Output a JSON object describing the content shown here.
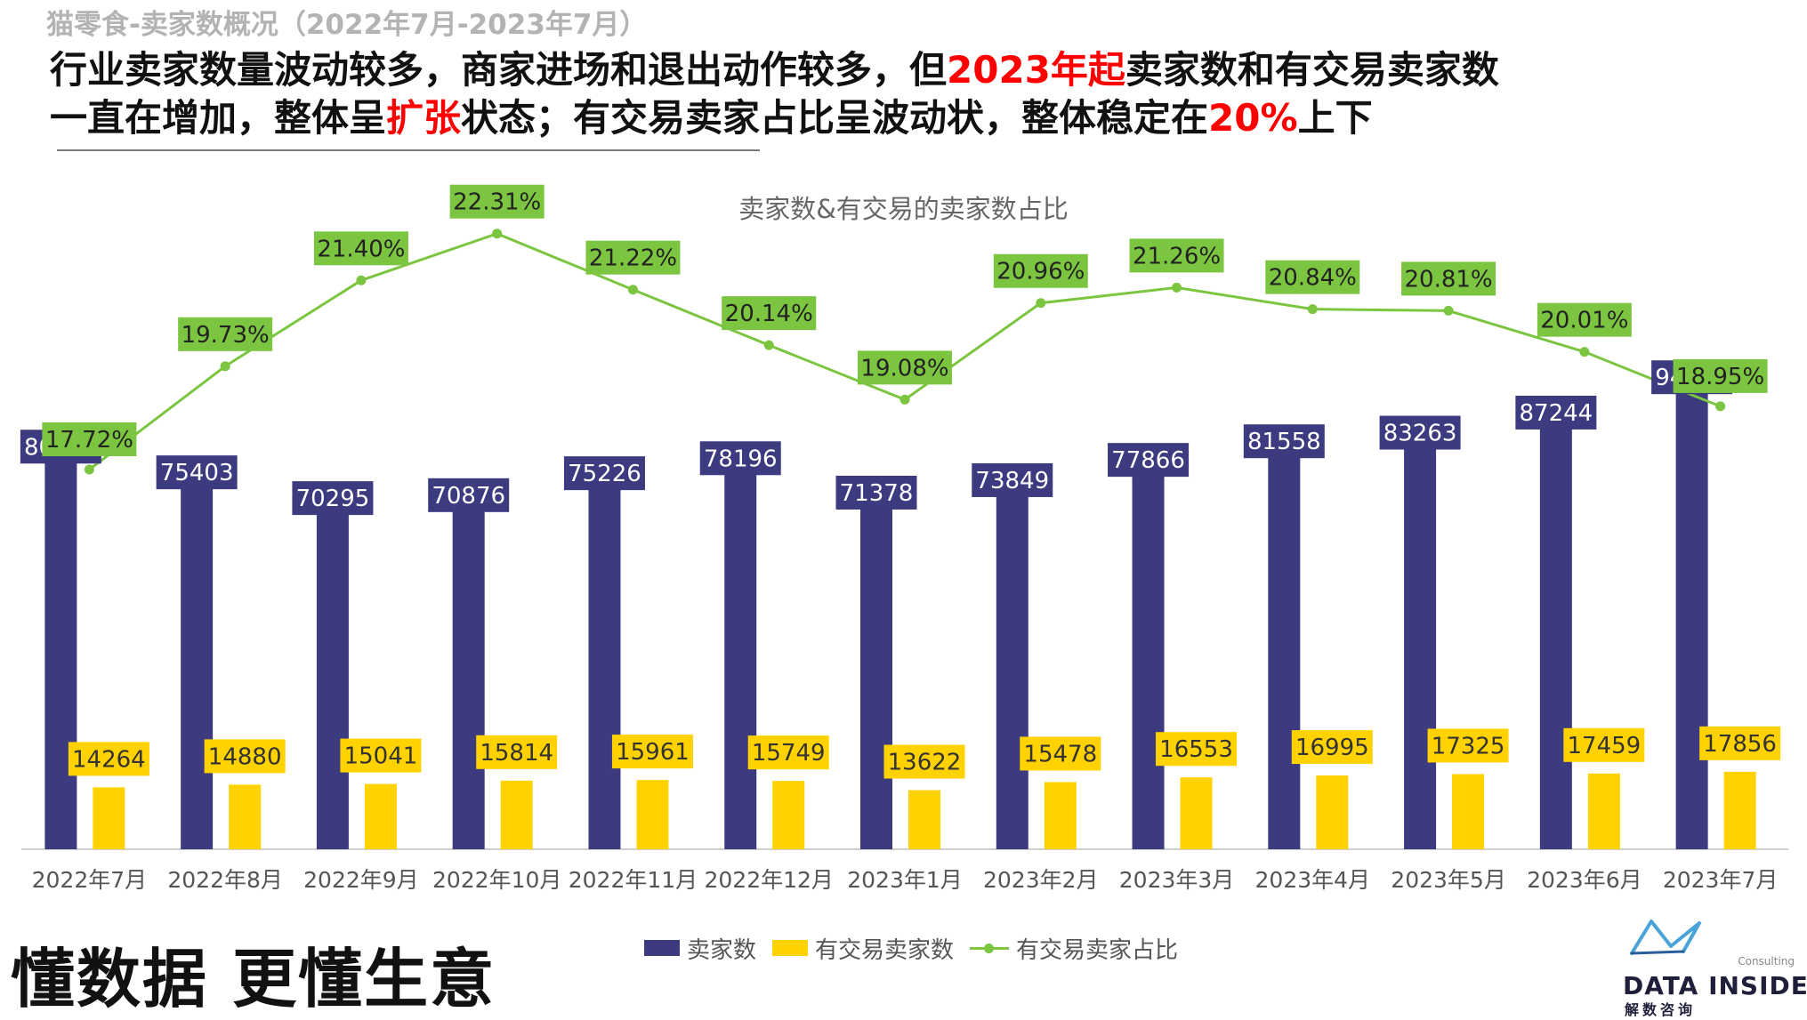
{
  "header": {
    "breadcrumb": "猫零食-卖家数概况（2022年7月-2023年7月）",
    "headline": {
      "line1_a": "行业卖家数量波动较多，商家进场和退出动作较多，但",
      "line1_hl": "2023年起",
      "line1_b": "卖家数和有交易卖家数",
      "line2_a": "一直在增加，整体呈",
      "line2_hl": "扩张",
      "line2_b": "状态；有交易卖家占比呈波动状，整体稳定在",
      "line2_hl2": "20%",
      "line2_c": "上下"
    }
  },
  "chart_data": {
    "type": "bar",
    "title": "卖家数&有交易的卖家数占比",
    "categories": [
      "2022年7月",
      "2022年8月",
      "2022年9月",
      "2022年10月",
      "2022年11月",
      "2022年12月",
      "2023年1月",
      "2023年2月",
      "2023年3月",
      "2023年4月",
      "2023年5月",
      "2023年6月",
      "2023年7月"
    ],
    "series": [
      {
        "name": "卖家数",
        "kind": "bar",
        "color": "#3d3b7f",
        "values": [
          80491,
          75403,
          70295,
          70876,
          75226,
          78196,
          71378,
          73849,
          77866,
          81558,
          83263,
          87244,
          94248
        ]
      },
      {
        "name": "有交易卖家数",
        "kind": "bar",
        "color": "#ffd200",
        "values": [
          14264,
          14880,
          15041,
          15814,
          15961,
          15749,
          13622,
          15478,
          16553,
          16995,
          17325,
          17459,
          17856
        ]
      },
      {
        "name": "有交易卖家占比",
        "kind": "line",
        "color": "#7cc540",
        "values": [
          17.72,
          19.73,
          21.4,
          22.31,
          21.22,
          20.14,
          19.08,
          20.96,
          21.26,
          20.84,
          20.81,
          20.01,
          18.95
        ]
      }
    ],
    "data_labels": {
      "seller": [
        "80491",
        "75403",
        "70295",
        "70876",
        "75226",
        "78196",
        "71378",
        "73849",
        "77866",
        "81558",
        "83263",
        "87244",
        "94248"
      ],
      "trading": [
        "14264",
        "14880",
        "15041",
        "15814",
        "15961",
        "15749",
        "13622",
        "15478",
        "16553",
        "16995",
        "17325",
        "17459",
        "17856"
      ],
      "ratio": [
        "17.72%",
        "19.73%",
        "21.40%",
        "22.31%",
        "21.22%",
        "20.14%",
        "19.08%",
        "20.96%",
        "21.26%",
        "20.84%",
        "20.81%",
        "20.01%",
        "18.95%"
      ]
    },
    "legend_position": "bottom",
    "grid": false
  },
  "legend": [
    {
      "label": "卖家数",
      "color": "#3d3b7f",
      "type": "bar"
    },
    {
      "label": "有交易卖家数",
      "color": "#ffd200",
      "type": "bar"
    },
    {
      "label": "有交易卖家占比",
      "color": "#7cc540",
      "type": "line"
    }
  ],
  "footer": {
    "slogan": "懂数据 更懂生意",
    "logo": {
      "consulting": "Consulting",
      "name": "DATA INSIDER",
      "sub": "解数咨询",
      "icon": "data-insider-logo-icon"
    }
  }
}
